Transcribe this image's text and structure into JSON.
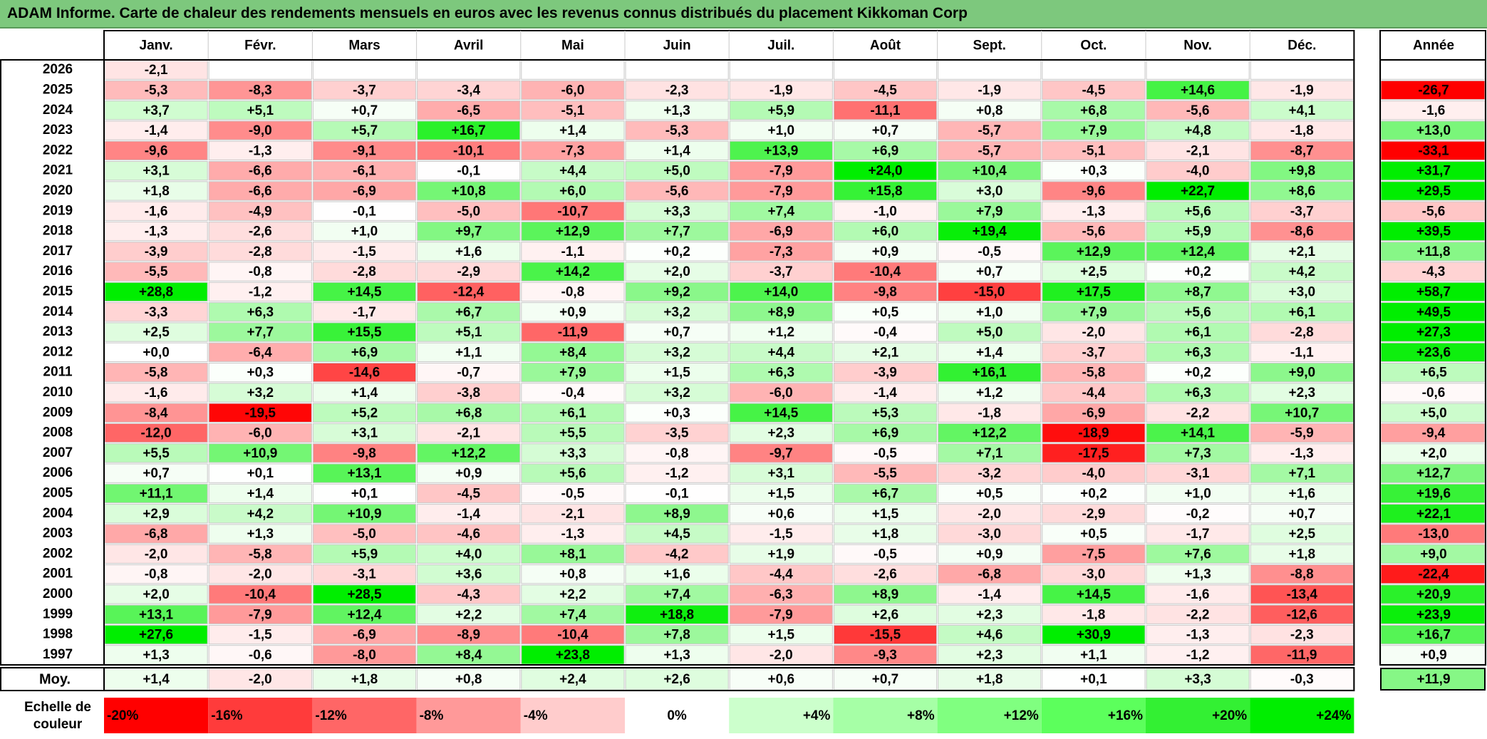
{
  "title": "ADAM Informe. Carte de chaleur des rendements mensuels en euros avec les revenus connus distribués du placement Kikkoman Corp",
  "chart_data": {
    "type": "heatmap",
    "months": [
      "Janv.",
      "Févr.",
      "Mars",
      "Avril",
      "Mai",
      "Juin",
      "Juil.",
      "Août",
      "Sept.",
      "Oct.",
      "Nov.",
      "Déc."
    ],
    "annual_header": "Année",
    "rows": [
      {
        "year": "2026",
        "months": [
          "-2,1",
          "",
          "",
          "",
          "",
          "",
          "",
          "",
          "",
          "",
          "",
          ""
        ],
        "annual": ""
      },
      {
        "year": "2025",
        "months": [
          "-5,3",
          "-8,3",
          "-3,7",
          "-3,4",
          "-6,0",
          "-2,3",
          "-1,9",
          "-4,5",
          "-1,9",
          "-4,5",
          "+14,6",
          "-1,9"
        ],
        "annual": "-26,7"
      },
      {
        "year": "2024",
        "months": [
          "+3,7",
          "+5,1",
          "+0,7",
          "-6,5",
          "-5,1",
          "+1,3",
          "+5,9",
          "-11,1",
          "+0,8",
          "+6,8",
          "-5,6",
          "+4,1"
        ],
        "annual": "-1,6"
      },
      {
        "year": "2023",
        "months": [
          "-1,4",
          "-9,0",
          "+5,7",
          "+16,7",
          "+1,4",
          "-5,3",
          "+1,0",
          "+0,7",
          "-5,7",
          "+7,9",
          "+4,8",
          "-1,8"
        ],
        "annual": "+13,0"
      },
      {
        "year": "2022",
        "months": [
          "-9,6",
          "-1,3",
          "-9,1",
          "-10,1",
          "-7,3",
          "+1,4",
          "+13,9",
          "+6,9",
          "-5,7",
          "-5,1",
          "-2,1",
          "-8,7"
        ],
        "annual": "-33,1"
      },
      {
        "year": "2021",
        "months": [
          "+3,1",
          "-6,6",
          "-6,1",
          "-0,1",
          "+4,4",
          "+5,0",
          "-7,9",
          "+24,0",
          "+10,4",
          "+0,3",
          "-4,0",
          "+9,8"
        ],
        "annual": "+31,7"
      },
      {
        "year": "2020",
        "months": [
          "+1,8",
          "-6,6",
          "-6,9",
          "+10,8",
          "+6,0",
          "-5,6",
          "-7,9",
          "+15,8",
          "+3,0",
          "-9,6",
          "+22,7",
          "+8,6"
        ],
        "annual": "+29,5"
      },
      {
        "year": "2019",
        "months": [
          "-1,6",
          "-4,9",
          "-0,1",
          "-5,0",
          "-10,7",
          "+3,3",
          "+7,4",
          "-1,0",
          "+7,9",
          "-1,3",
          "+5,6",
          "-3,7"
        ],
        "annual": "-5,6"
      },
      {
        "year": "2018",
        "months": [
          "-1,3",
          "-2,6",
          "+1,0",
          "+9,7",
          "+12,9",
          "+7,7",
          "-6,9",
          "+6,0",
          "+19,4",
          "-5,6",
          "+5,9",
          "-8,6"
        ],
        "annual": "+39,5"
      },
      {
        "year": "2017",
        "months": [
          "-3,9",
          "-2,8",
          "-1,5",
          "+1,6",
          "-1,1",
          "+0,2",
          "-7,3",
          "+0,9",
          "-0,5",
          "+12,9",
          "+12,4",
          "+2,1"
        ],
        "annual": "+11,8"
      },
      {
        "year": "2016",
        "months": [
          "-5,5",
          "-0,8",
          "-2,8",
          "-2,9",
          "+14,2",
          "+2,0",
          "-3,7",
          "-10,4",
          "+0,7",
          "+2,5",
          "+0,2",
          "+4,2"
        ],
        "annual": "-4,3"
      },
      {
        "year": "2015",
        "months": [
          "+28,8",
          "-1,2",
          "+14,5",
          "-12,4",
          "-0,8",
          "+9,2",
          "+14,0",
          "-9,8",
          "-15,0",
          "+17,5",
          "+8,7",
          "+3,0"
        ],
        "annual": "+58,7"
      },
      {
        "year": "2014",
        "months": [
          "-3,3",
          "+6,3",
          "-1,7",
          "+6,7",
          "+0,9",
          "+3,2",
          "+8,9",
          "+0,5",
          "+1,0",
          "+7,9",
          "+5,6",
          "+6,1"
        ],
        "annual": "+49,5"
      },
      {
        "year": "2013",
        "months": [
          "+2,5",
          "+7,7",
          "+15,5",
          "+5,1",
          "-11,9",
          "+0,7",
          "+1,2",
          "-0,4",
          "+5,0",
          "-2,0",
          "+6,1",
          "-2,8"
        ],
        "annual": "+27,3"
      },
      {
        "year": "2012",
        "months": [
          "+0,0",
          "-6,4",
          "+6,9",
          "+1,1",
          "+8,4",
          "+3,2",
          "+4,4",
          "+2,1",
          "+1,4",
          "-3,7",
          "+6,3",
          "-1,1"
        ],
        "annual": "+23,6"
      },
      {
        "year": "2011",
        "months": [
          "-5,8",
          "+0,3",
          "-14,6",
          "-0,7",
          "+7,9",
          "+1,5",
          "+6,3",
          "-3,9",
          "+16,1",
          "-5,8",
          "+0,2",
          "+9,0"
        ],
        "annual": "+6,5"
      },
      {
        "year": "2010",
        "months": [
          "-1,6",
          "+3,2",
          "+1,4",
          "-3,8",
          "-0,4",
          "+3,2",
          "-6,0",
          "-1,4",
          "+1,2",
          "-4,4",
          "+6,3",
          "+2,3"
        ],
        "annual": "-0,6"
      },
      {
        "year": "2009",
        "months": [
          "-8,4",
          "-19,5",
          "+5,2",
          "+6,8",
          "+6,1",
          "+0,3",
          "+14,5",
          "+5,3",
          "-1,8",
          "-6,9",
          "-2,2",
          "+10,7"
        ],
        "annual": "+5,0"
      },
      {
        "year": "2008",
        "months": [
          "-12,0",
          "-6,0",
          "+3,1",
          "-2,1",
          "+5,5",
          "-3,5",
          "+2,3",
          "+6,9",
          "+12,2",
          "-18,9",
          "+14,1",
          "-5,9"
        ],
        "annual": "-9,4"
      },
      {
        "year": "2007",
        "months": [
          "+5,5",
          "+10,9",
          "-9,8",
          "+12,2",
          "+3,3",
          "-0,8",
          "-9,7",
          "-0,5",
          "+7,1",
          "-17,5",
          "+7,3",
          "-1,3"
        ],
        "annual": "+2,0"
      },
      {
        "year": "2006",
        "months": [
          "+0,7",
          "+0,1",
          "+13,1",
          "+0,9",
          "+5,6",
          "-1,2",
          "+3,1",
          "-5,5",
          "-3,2",
          "-4,0",
          "-3,1",
          "+7,1"
        ],
        "annual": "+12,7"
      },
      {
        "year": "2005",
        "months": [
          "+11,1",
          "+1,4",
          "+0,1",
          "-4,5",
          "-0,5",
          "-0,1",
          "+1,5",
          "+6,7",
          "+0,5",
          "+0,2",
          "+1,0",
          "+1,6"
        ],
        "annual": "+19,6"
      },
      {
        "year": "2004",
        "months": [
          "+2,9",
          "+4,2",
          "+10,9",
          "-1,4",
          "-2,1",
          "+8,9",
          "+0,6",
          "+1,5",
          "-2,0",
          "-2,9",
          "-0,2",
          "+0,7"
        ],
        "annual": "+22,1"
      },
      {
        "year": "2003",
        "months": [
          "-6,8",
          "+1,3",
          "-5,0",
          "-4,6",
          "-1,3",
          "+4,5",
          "-1,5",
          "+1,8",
          "-3,0",
          "+0,5",
          "-1,7",
          "+2,5"
        ],
        "annual": "-13,0"
      },
      {
        "year": "2002",
        "months": [
          "-2,0",
          "-5,8",
          "+5,9",
          "+4,0",
          "+8,1",
          "-4,2",
          "+1,9",
          "-0,5",
          "+0,9",
          "-7,5",
          "+7,6",
          "+1,8"
        ],
        "annual": "+9,0"
      },
      {
        "year": "2001",
        "months": [
          "-0,8",
          "-2,0",
          "-3,1",
          "+3,6",
          "+0,8",
          "+1,6",
          "-4,4",
          "-2,6",
          "-6,8",
          "-3,0",
          "+1,3",
          "-8,8"
        ],
        "annual": "-22,4"
      },
      {
        "year": "2000",
        "months": [
          "+2,0",
          "-10,4",
          "+28,5",
          "-4,3",
          "+2,2",
          "+7,4",
          "-6,3",
          "+8,9",
          "-1,4",
          "+14,5",
          "-1,6",
          "-13,4"
        ],
        "annual": "+20,9"
      },
      {
        "year": "1999",
        "months": [
          "+13,1",
          "-7,9",
          "+12,4",
          "+2,2",
          "+7,4",
          "+18,8",
          "-7,9",
          "+2,6",
          "+2,3",
          "-1,8",
          "-2,2",
          "-12,6"
        ],
        "annual": "+23,9"
      },
      {
        "year": "1998",
        "months": [
          "+27,6",
          "-1,5",
          "-6,9",
          "-8,9",
          "-10,4",
          "+7,8",
          "+1,5",
          "-15,5",
          "+4,6",
          "+30,9",
          "-1,3",
          "-2,3"
        ],
        "annual": "+16,7"
      },
      {
        "year": "1997",
        "months": [
          "+1,3",
          "-0,6",
          "-8,0",
          "+8,4",
          "+23,8",
          "+1,3",
          "-2,0",
          "-9,3",
          "+2,3",
          "+1,1",
          "-1,2",
          "-11,9"
        ],
        "annual": "+0,9"
      }
    ],
    "average": {
      "label": "Moy.",
      "months": [
        "+1,4",
        "-2,0",
        "+1,8",
        "+0,8",
        "+2,4",
        "+2,6",
        "+0,6",
        "+0,7",
        "+1,8",
        "+0,1",
        "+3,3",
        "-0,3"
      ],
      "annual": "+11,9"
    },
    "scale": {
      "label_line1": "Echelle de",
      "label_line2": "couleur",
      "steps": [
        {
          "value": -20,
          "label": "-20%",
          "color": "#ff0000"
        },
        {
          "value": -16,
          "label": "-16%",
          "color": "#ff3b3b"
        },
        {
          "value": -12,
          "label": "-12%",
          "color": "#ff6666"
        },
        {
          "value": -8,
          "label": "-8%",
          "color": "#ff9999"
        },
        {
          "value": -4,
          "label": "-4%",
          "color": "#ffcccc"
        },
        {
          "value": 0,
          "label": "0%",
          "color": "#ffffff"
        },
        {
          "value": 4,
          "label": "+4%",
          "color": "#ccffcc"
        },
        {
          "value": 8,
          "label": "+8%",
          "color": "#a6ffa6"
        },
        {
          "value": 12,
          "label": "+12%",
          "color": "#80ff80"
        },
        {
          "value": 16,
          "label": "+16%",
          "color": "#5cff5c"
        },
        {
          "value": 20,
          "label": "+20%",
          "color": "#33f033"
        },
        {
          "value": 24,
          "label": "+24%",
          "color": "#00ee00"
        }
      ]
    },
    "colors": {
      "title_band": "#7dc87d",
      "negative_max": "#ff0000",
      "neutral": "#ffffff",
      "positive_max": "#00ee00"
    }
  }
}
